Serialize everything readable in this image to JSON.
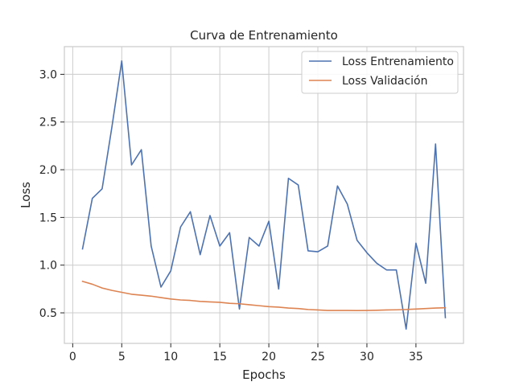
{
  "chart_data": {
    "type": "line",
    "title": "Curva de Entrenamiento",
    "xlabel": "Epochs",
    "ylabel": "Loss",
    "xlim": [
      -0.85,
      39.85
    ],
    "ylim": [
      0.18,
      3.29
    ],
    "xticks": [
      0,
      5,
      10,
      15,
      20,
      25,
      30,
      35
    ],
    "yticks": [
      0.5,
      1.0,
      1.5,
      2.0,
      2.5,
      3.0
    ],
    "xtick_labels": [
      "0",
      "5",
      "10",
      "15",
      "20",
      "25",
      "30",
      "35"
    ],
    "ytick_labels": [
      "0.5",
      "1.0",
      "1.5",
      "2.0",
      "2.5",
      "3.0"
    ],
    "grid": true,
    "legend_position": "top-right",
    "x": [
      1,
      2,
      3,
      4,
      5,
      6,
      7,
      8,
      9,
      10,
      11,
      12,
      13,
      14,
      15,
      16,
      17,
      18,
      19,
      20,
      21,
      22,
      23,
      24,
      25,
      26,
      27,
      28,
      29,
      30,
      31,
      32,
      33,
      34,
      35,
      36,
      37,
      38
    ],
    "series": [
      {
        "name": "Loss Entrenamiento",
        "color": "#4c72b0",
        "values": [
          1.17,
          1.7,
          1.8,
          2.45,
          3.14,
          2.05,
          2.21,
          1.2,
          0.77,
          0.94,
          1.4,
          1.56,
          1.11,
          1.52,
          1.2,
          1.34,
          0.54,
          1.29,
          1.2,
          1.46,
          0.75,
          1.91,
          1.84,
          1.15,
          1.14,
          1.2,
          1.83,
          1.64,
          1.26,
          1.13,
          1.02,
          0.95,
          0.95,
          0.33,
          1.23,
          0.81,
          2.27,
          0.45
        ]
      },
      {
        "name": "Loss Validación",
        "color": "#dd8452",
        "values": [
          0.83,
          0.8,
          0.76,
          0.735,
          0.715,
          0.695,
          0.685,
          0.675,
          0.66,
          0.645,
          0.635,
          0.63,
          0.62,
          0.615,
          0.61,
          0.6,
          0.595,
          0.585,
          0.575,
          0.565,
          0.56,
          0.55,
          0.545,
          0.535,
          0.53,
          0.525,
          0.525,
          0.525,
          0.524,
          0.525,
          0.527,
          0.53,
          0.532,
          0.535,
          0.54,
          0.545,
          0.55,
          0.553
        ]
      }
    ]
  }
}
